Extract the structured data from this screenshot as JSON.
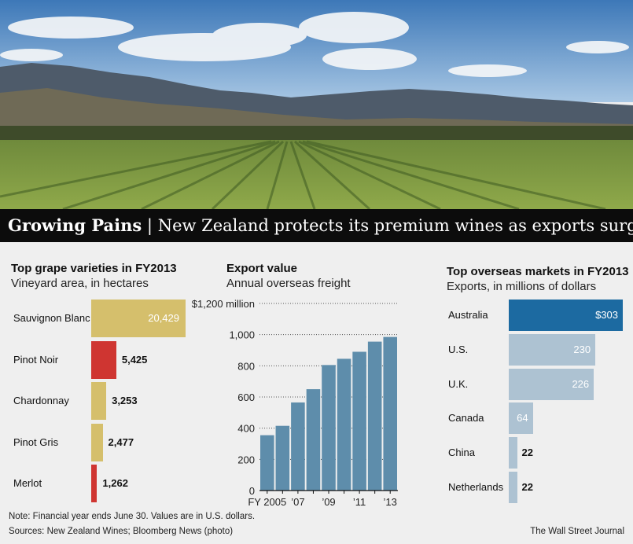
{
  "colors": {
    "gold": "#d5bf6c",
    "red": "#cf3531",
    "blue": "#5e8dab",
    "dark_blue": "#1c6aa1",
    "light_blue": "#adc2d2"
  },
  "photo": {
    "icon": "vineyard-landscape-photo"
  },
  "headline": {
    "bold": "Growing Pains",
    "separator": "|",
    "rest": "New Zealand protects its premium wines as exports surge"
  },
  "chart_data": [
    {
      "type": "bar",
      "orientation": "horizontal",
      "title": "Top grape varieties in FY2013",
      "subtitle": "Vineyard area, in hectares",
      "categories": [
        "Sauvignon Blanc",
        "Pinot Noir",
        "Chardonnay",
        "Pinot Gris",
        "Merlot"
      ],
      "values": [
        20429,
        5425,
        3253,
        2477,
        1262
      ],
      "value_labels": [
        "20,429",
        "5,425",
        "3,253",
        "2,477",
        "1,262"
      ],
      "bar_colors": [
        "gold",
        "red",
        "gold",
        "gold",
        "red"
      ]
    },
    {
      "type": "bar",
      "title": "Export value",
      "subtitle": "Annual overseas freight",
      "x": [
        "2005",
        "2006",
        "2007",
        "2008",
        "2009",
        "2010",
        "2011",
        "2012",
        "2013"
      ],
      "values": [
        355,
        415,
        565,
        650,
        805,
        845,
        890,
        955,
        985
      ],
      "tick_labels": [
        "FY 2005",
        "’07",
        "’09",
        "’11",
        "’13"
      ],
      "y_ticks": [
        0,
        200,
        400,
        600,
        800,
        1000,
        1200
      ],
      "y_tick_labels": [
        "0",
        "200",
        "400",
        "600",
        "800",
        "1,000",
        "$1,200 million"
      ],
      "ylim": [
        0,
        1200
      ],
      "grid": true
    },
    {
      "type": "bar",
      "orientation": "horizontal",
      "title": "Top overseas markets in FY2013",
      "subtitle": "Exports, in millions of dollars",
      "categories": [
        "Australia",
        "U.S.",
        "U.K.",
        "Canada",
        "China",
        "Netherlands"
      ],
      "values": [
        303,
        230,
        226,
        64,
        22,
        22
      ],
      "value_labels": [
        "$303",
        "230",
        "226",
        "64",
        "22",
        "22"
      ],
      "bar_colors": [
        "dark_blue",
        "light_blue",
        "light_blue",
        "light_blue",
        "light_blue",
        "light_blue"
      ]
    }
  ],
  "footer": {
    "note": "Note: Financial year ends June 30. Values are in U.S. dollars.",
    "sources": "Sources: New Zealand Wines; Bloomberg News (photo)",
    "credit": "The Wall Street Journal"
  }
}
